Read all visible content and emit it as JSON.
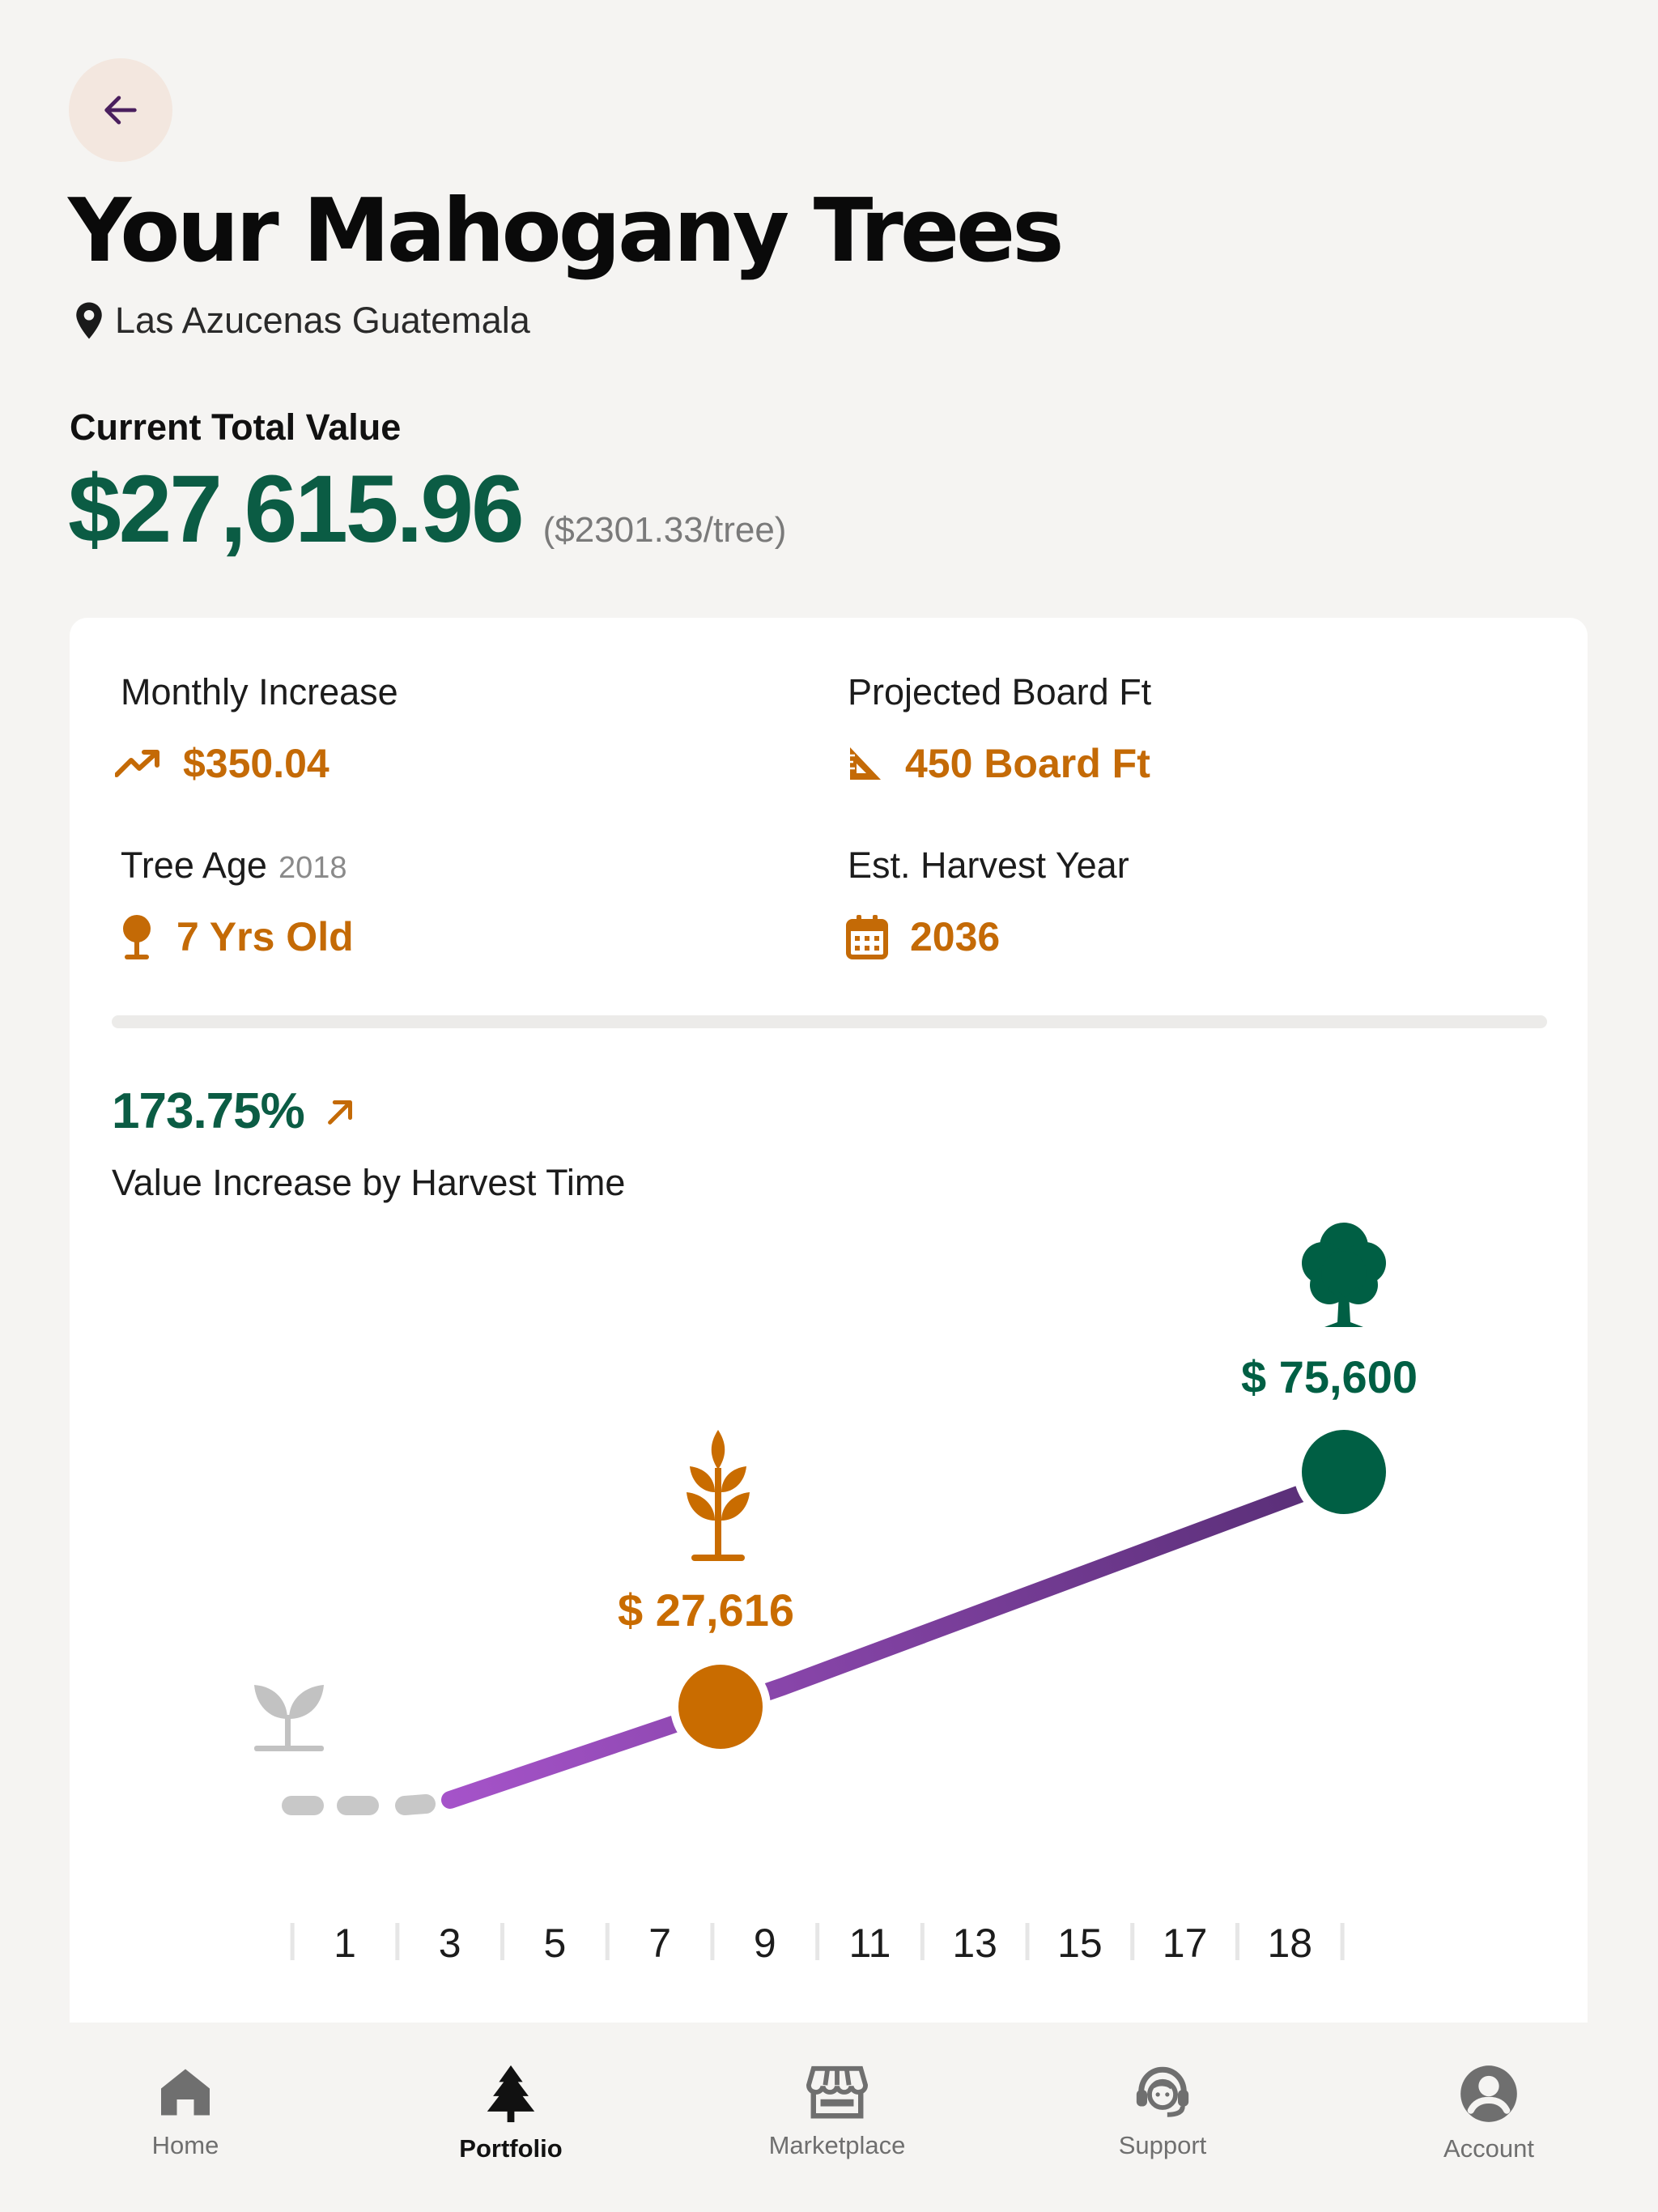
{
  "header": {
    "back_icon": "arrow-left-icon",
    "title": "Your Mahogany Trees",
    "location": "Las Azucenas Guatemala"
  },
  "summary": {
    "label": "Current Total Value",
    "total_value": "$27,615.96",
    "per_tree": "($2301.33/tree)"
  },
  "stats": {
    "monthly_increase": {
      "label": "Monthly Increase",
      "value": "$350.04",
      "icon": "trending-up-icon"
    },
    "board_ft": {
      "label": "Projected Board Ft",
      "value": "450 Board Ft",
      "icon": "set-square-icon"
    },
    "tree_age": {
      "label": "Tree Age",
      "year": "2018",
      "value": "7 Yrs Old",
      "icon": "tree-icon"
    },
    "harvest": {
      "label": "Est. Harvest Year",
      "value": "2036",
      "icon": "calendar-icon"
    }
  },
  "growth": {
    "percent": "173.75%",
    "caption": "Value Increase by Harvest Time"
  },
  "chart_data": {
    "type": "line",
    "x_ticks": [
      "1",
      "3",
      "5",
      "7",
      "9",
      "11",
      "13",
      "15",
      "17",
      "18"
    ],
    "points": [
      {
        "x": 1,
        "label": "",
        "stage": "seedling-icon"
      },
      {
        "x": 3,
        "label": "",
        "stage": ""
      },
      {
        "x": 7,
        "label": "$ 27,616",
        "value": 27616,
        "stage": "sapling-icon"
      },
      {
        "x": 18,
        "label": "$ 75,600",
        "value": 75600,
        "stage": "mature-tree-icon"
      }
    ],
    "colors": {
      "past": "#c8c8c8",
      "line_start": "#a553c9",
      "line_end": "#5a2f78",
      "current": "#c96c00",
      "future": "#005f44"
    }
  },
  "nav": {
    "items": [
      {
        "label": "Home",
        "icon": "home-icon"
      },
      {
        "label": "Portfolio",
        "icon": "pine-tree-icon",
        "active": true
      },
      {
        "label": "Marketplace",
        "icon": "store-icon"
      },
      {
        "label": "Support",
        "icon": "headset-icon"
      },
      {
        "label": "Account",
        "icon": "account-icon"
      }
    ]
  }
}
